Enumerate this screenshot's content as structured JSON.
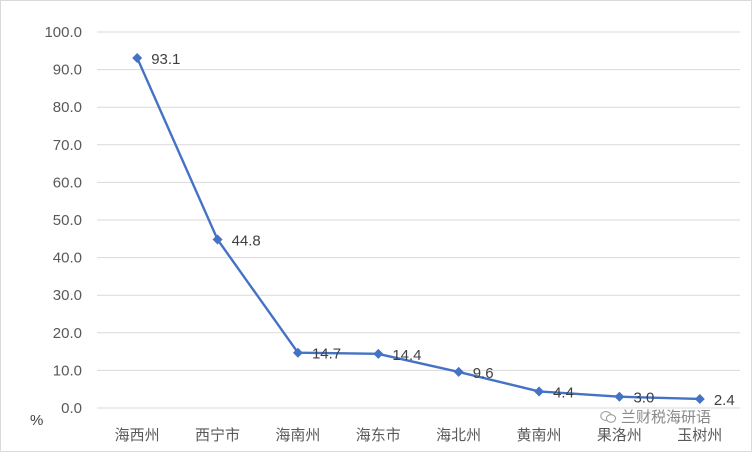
{
  "chart_data": {
    "type": "line",
    "title": "",
    "ylabel": "%",
    "xlabel": "",
    "categories": [
      "海西州",
      "西宁市",
      "海南州",
      "海东市",
      "海北州",
      "黄南州",
      "果洛州",
      "玉树州"
    ],
    "series": [
      {
        "values": [
          93.1,
          44.8,
          14.7,
          14.4,
          9.6,
          4.4,
          3.0,
          2.4
        ]
      }
    ],
    "ylim": [
      0,
      100
    ],
    "yticks": [
      "0.0",
      "10.0",
      "20.0",
      "30.0",
      "40.0",
      "50.0",
      "60.0",
      "70.0",
      "80.0",
      "90.0",
      "100.0"
    ],
    "data_labels": [
      "93.1",
      "44.8",
      "14.7",
      "14.4",
      "9.6",
      "4.4",
      "3.0",
      "2.4"
    ],
    "grid": true,
    "line_color": "#4472c4",
    "grid_color": "#d9d9d9"
  },
  "watermark": {
    "text": "兰财税海研语",
    "icon": "wechat-icon"
  }
}
